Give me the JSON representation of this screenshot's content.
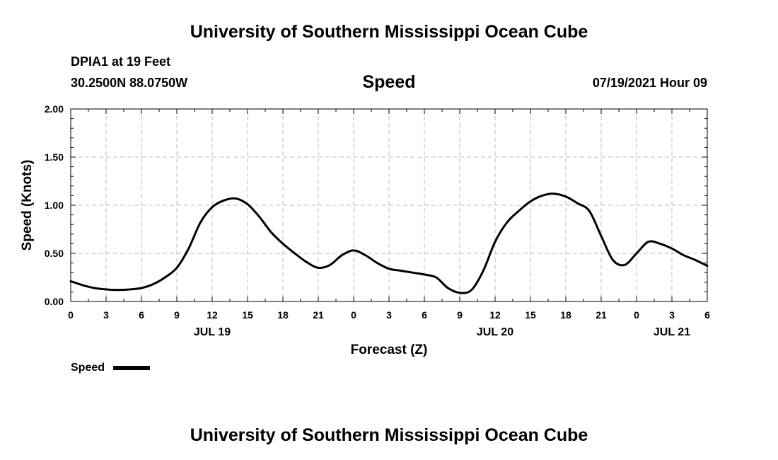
{
  "header": {
    "title": "University of Southern Mississippi Ocean Cube",
    "station": "DPIA1 at 19 Feet",
    "coords": "30.2500N  88.0750W",
    "datetime": "07/19/2021 Hour 09"
  },
  "footer": {
    "title": "University of Southern Mississippi Ocean Cube"
  },
  "colors": {
    "line": "#000000",
    "grid": "#bbbbbb",
    "background": "#ffffff"
  },
  "chart_data": {
    "type": "line",
    "title": "Speed",
    "xlabel": "Forecast (Z)",
    "ylabel": "Speed (Knots)",
    "xlim": [
      0,
      54
    ],
    "ylim": [
      0,
      2
    ],
    "grid": true,
    "legend": "bottom-left",
    "y_ticks": [
      "0.00",
      "0.50",
      "1.00",
      "1.50",
      "2.00"
    ],
    "x_ticks": [
      "0",
      "3",
      "6",
      "9",
      "12",
      "15",
      "18",
      "21",
      "0",
      "3",
      "6",
      "9",
      "12",
      "15",
      "18",
      "21",
      "0",
      "3",
      "6"
    ],
    "date_labels": [
      {
        "label": "JUL 19",
        "x": 12
      },
      {
        "label": "JUL 20",
        "x": 36
      },
      {
        "label": "JUL 21",
        "x": 51
      }
    ],
    "series": [
      {
        "name": "Speed",
        "x": [
          0,
          1,
          2,
          3,
          4,
          5,
          6,
          7,
          8,
          9,
          10,
          11,
          12,
          13,
          14,
          15,
          16,
          17,
          18,
          19,
          20,
          21,
          22,
          23,
          24,
          25,
          26,
          27,
          28,
          29,
          30,
          31,
          32,
          33,
          34,
          35,
          36,
          37,
          38,
          39,
          40,
          41,
          42,
          43,
          44,
          45,
          46,
          47,
          48,
          49,
          50,
          51,
          52,
          53,
          54
        ],
        "values": [
          0.21,
          0.17,
          0.14,
          0.125,
          0.12,
          0.125,
          0.14,
          0.18,
          0.25,
          0.35,
          0.55,
          0.82,
          0.98,
          1.05,
          1.07,
          1.01,
          0.88,
          0.72,
          0.6,
          0.5,
          0.41,
          0.35,
          0.38,
          0.48,
          0.53,
          0.48,
          0.4,
          0.34,
          0.32,
          0.3,
          0.28,
          0.25,
          0.14,
          0.09,
          0.12,
          0.32,
          0.62,
          0.82,
          0.94,
          1.04,
          1.1,
          1.12,
          1.09,
          1.02,
          0.94,
          0.68,
          0.43,
          0.38,
          0.5,
          0.62,
          0.6,
          0.55,
          0.48,
          0.43,
          0.37
        ]
      }
    ]
  }
}
